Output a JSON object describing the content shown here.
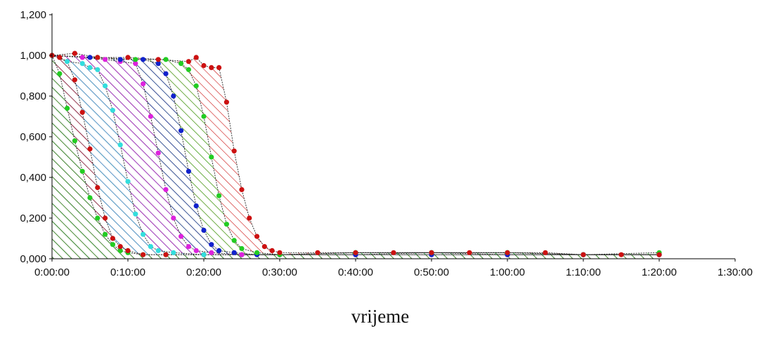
{
  "chart_data": {
    "type": "area",
    "title": "",
    "xlabel": "vrijeme",
    "ylabel": "",
    "xlim": [
      0,
      90
    ],
    "ylim": [
      0,
      1.2
    ],
    "x_ticks": [
      {
        "value": 0,
        "label": "0:00:00"
      },
      {
        "value": 10,
        "label": "0:10:00"
      },
      {
        "value": 20,
        "label": "0:20:00"
      },
      {
        "value": 30,
        "label": "0:30:00"
      },
      {
        "value": 40,
        "label": "0:40:00"
      },
      {
        "value": 50,
        "label": "0:50:00"
      },
      {
        "value": 60,
        "label": "1:00:00"
      },
      {
        "value": 70,
        "label": "1:10:00"
      },
      {
        "value": 80,
        "label": "1:20:00"
      },
      {
        "value": 90,
        "label": "1:30:00"
      }
    ],
    "y_ticks": [
      {
        "value": 0.0,
        "label": "0,000"
      },
      {
        "value": 0.2,
        "label": "0,200"
      },
      {
        "value": 0.4,
        "label": "0,400"
      },
      {
        "value": 0.6,
        "label": "0,600"
      },
      {
        "value": 0.8,
        "label": "0,800"
      },
      {
        "value": 1.0,
        "label": "1,000"
      },
      {
        "value": 1.2,
        "label": "1,200"
      }
    ],
    "grid": false,
    "legend": "none",
    "series": [
      {
        "color": "#22cc22",
        "points": [
          [
            0,
            1.0
          ],
          [
            1,
            0.91
          ],
          [
            2,
            0.74
          ],
          [
            3,
            0.58
          ],
          [
            4,
            0.43
          ],
          [
            5,
            0.3
          ],
          [
            6,
            0.2
          ],
          [
            7,
            0.12
          ],
          [
            8,
            0.07
          ],
          [
            9,
            0.04
          ],
          [
            10,
            0.03
          ],
          [
            12,
            0.02
          ],
          [
            15,
            0.02
          ],
          [
            20,
            0.02
          ],
          [
            25,
            0.02
          ],
          [
            30,
            0.02
          ],
          [
            40,
            0.03
          ],
          [
            50,
            0.03
          ],
          [
            60,
            0.03
          ],
          [
            70,
            0.02
          ],
          [
            80,
            0.02
          ]
        ]
      },
      {
        "color": "#cc1111",
        "points": [
          [
            0,
            1.0
          ],
          [
            1,
            0.99
          ],
          [
            2,
            0.97
          ],
          [
            3,
            0.88
          ],
          [
            4,
            0.72
          ],
          [
            5,
            0.54
          ],
          [
            6,
            0.35
          ],
          [
            7,
            0.2
          ],
          [
            8,
            0.1
          ],
          [
            9,
            0.06
          ],
          [
            10,
            0.04
          ],
          [
            12,
            0.02
          ],
          [
            15,
            0.02
          ],
          [
            20,
            0.02
          ],
          [
            25,
            0.02
          ],
          [
            30,
            0.02
          ],
          [
            40,
            0.02
          ],
          [
            50,
            0.02
          ],
          [
            60,
            0.02
          ],
          [
            70,
            0.02
          ],
          [
            80,
            0.02
          ]
        ]
      },
      {
        "color": "#33dddd",
        "points": [
          [
            0,
            1.0
          ],
          [
            2,
            0.97
          ],
          [
            4,
            0.96
          ],
          [
            5,
            0.94
          ],
          [
            6,
            0.93
          ],
          [
            7,
            0.85
          ],
          [
            8,
            0.73
          ],
          [
            9,
            0.56
          ],
          [
            10,
            0.38
          ],
          [
            11,
            0.22
          ],
          [
            12,
            0.12
          ],
          [
            13,
            0.06
          ],
          [
            14,
            0.04
          ],
          [
            16,
            0.03
          ],
          [
            20,
            0.02
          ],
          [
            25,
            0.02
          ],
          [
            30,
            0.02
          ],
          [
            40,
            0.03
          ],
          [
            50,
            0.03
          ],
          [
            60,
            0.03
          ],
          [
            70,
            0.02
          ],
          [
            80,
            0.02
          ]
        ]
      },
      {
        "color": "#dd22dd",
        "points": [
          [
            0,
            1.0
          ],
          [
            4,
            0.99
          ],
          [
            7,
            0.98
          ],
          [
            9,
            0.97
          ],
          [
            11,
            0.96
          ],
          [
            12,
            0.86
          ],
          [
            13,
            0.7
          ],
          [
            14,
            0.52
          ],
          [
            15,
            0.34
          ],
          [
            16,
            0.2
          ],
          [
            17,
            0.11
          ],
          [
            18,
            0.06
          ],
          [
            19,
            0.04
          ],
          [
            21,
            0.03
          ],
          [
            25,
            0.02
          ],
          [
            30,
            0.02
          ],
          [
            40,
            0.02
          ],
          [
            50,
            0.03
          ],
          [
            60,
            0.02
          ],
          [
            70,
            0.02
          ],
          [
            80,
            0.02
          ]
        ]
      },
      {
        "color": "#1122cc",
        "points": [
          [
            0,
            1.0
          ],
          [
            5,
            0.99
          ],
          [
            9,
            0.98
          ],
          [
            12,
            0.98
          ],
          [
            14,
            0.96
          ],
          [
            15,
            0.91
          ],
          [
            16,
            0.8
          ],
          [
            17,
            0.63
          ],
          [
            18,
            0.43
          ],
          [
            19,
            0.26
          ],
          [
            20,
            0.14
          ],
          [
            21,
            0.07
          ],
          [
            22,
            0.04
          ],
          [
            24,
            0.03
          ],
          [
            27,
            0.02
          ],
          [
            30,
            0.02
          ],
          [
            40,
            0.02
          ],
          [
            50,
            0.02
          ],
          [
            60,
            0.02
          ],
          [
            70,
            0.02
          ],
          [
            80,
            0.02
          ]
        ]
      },
      {
        "color": "#22cc22",
        "points": [
          [
            0,
            1.0
          ],
          [
            6,
            0.99
          ],
          [
            11,
            0.98
          ],
          [
            15,
            0.98
          ],
          [
            17,
            0.96
          ],
          [
            18,
            0.93
          ],
          [
            19,
            0.85
          ],
          [
            20,
            0.7
          ],
          [
            21,
            0.5
          ],
          [
            22,
            0.31
          ],
          [
            23,
            0.17
          ],
          [
            24,
            0.09
          ],
          [
            25,
            0.05
          ],
          [
            27,
            0.03
          ],
          [
            30,
            0.02
          ],
          [
            40,
            0.03
          ],
          [
            50,
            0.03
          ],
          [
            60,
            0.03
          ],
          [
            70,
            0.02
          ],
          [
            80,
            0.03
          ]
        ]
      },
      {
        "color": "#cc1111",
        "points": [
          [
            0,
            1.0
          ],
          [
            3,
            1.01
          ],
          [
            6,
            0.99
          ],
          [
            10,
            0.99
          ],
          [
            14,
            0.98
          ],
          [
            18,
            0.97
          ],
          [
            19,
            0.99
          ],
          [
            20,
            0.95
          ],
          [
            21,
            0.94
          ],
          [
            22,
            0.94
          ],
          [
            23,
            0.77
          ],
          [
            24,
            0.53
          ],
          [
            25,
            0.34
          ],
          [
            26,
            0.2
          ],
          [
            27,
            0.11
          ],
          [
            28,
            0.06
          ],
          [
            29,
            0.04
          ],
          [
            30,
            0.03
          ],
          [
            35,
            0.03
          ],
          [
            40,
            0.03
          ],
          [
            45,
            0.03
          ],
          [
            50,
            0.03
          ],
          [
            55,
            0.03
          ],
          [
            60,
            0.03
          ],
          [
            65,
            0.03
          ],
          [
            70,
            0.02
          ],
          [
            75,
            0.02
          ],
          [
            80,
            0.02
          ]
        ]
      }
    ]
  }
}
